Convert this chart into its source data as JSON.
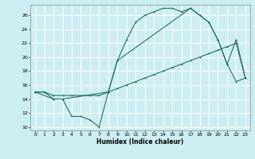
{
  "xlabel": "Humidex (Indice chaleur)",
  "bg_color": "#cceef2",
  "grid_color": "#ffffff",
  "line_color": "#1a6b5a",
  "xlim": [
    -0.5,
    23.5
  ],
  "ylim": [
    9.5,
    27.5
  ],
  "xticks": [
    0,
    1,
    2,
    3,
    4,
    5,
    6,
    7,
    8,
    9,
    10,
    11,
    12,
    13,
    14,
    15,
    16,
    17,
    18,
    19,
    20,
    21,
    22,
    23
  ],
  "yticks": [
    10,
    12,
    14,
    16,
    18,
    20,
    22,
    24,
    26
  ],
  "line1_x": [
    0,
    1,
    2,
    3,
    4,
    5,
    6,
    7,
    8,
    9,
    10,
    11,
    12,
    13,
    14,
    15,
    16,
    17,
    18,
    19,
    20,
    21,
    22,
    23
  ],
  "line1_y": [
    15.0,
    15.0,
    14.0,
    14.0,
    11.5,
    11.5,
    11.0,
    10.0,
    15.0,
    19.5,
    22.5,
    25.0,
    26.0,
    26.5,
    27.0,
    27.0,
    26.5,
    27.0,
    26.0,
    25.0,
    22.5,
    19.0,
    16.5,
    17.0
  ],
  "line2_x": [
    0,
    1,
    2,
    3,
    4,
    5,
    6,
    7,
    8,
    9,
    10,
    11,
    12,
    13,
    14,
    15,
    16,
    17,
    18,
    19,
    20,
    21,
    22,
    23
  ],
  "line2_y": [
    15.0,
    15.0,
    14.5,
    14.5,
    14.5,
    14.5,
    14.5,
    14.5,
    15.0,
    15.5,
    16.0,
    16.5,
    17.0,
    17.5,
    18.0,
    18.5,
    19.0,
    19.5,
    20.0,
    20.5,
    21.0,
    21.5,
    22.0,
    17.0
  ],
  "line3_x": [
    0,
    2,
    3,
    8,
    9,
    17,
    18,
    19,
    20,
    21,
    22,
    23
  ],
  "line3_y": [
    15.0,
    14.0,
    14.0,
    15.0,
    19.5,
    27.0,
    26.0,
    25.0,
    22.5,
    19.0,
    22.5,
    17.0
  ]
}
